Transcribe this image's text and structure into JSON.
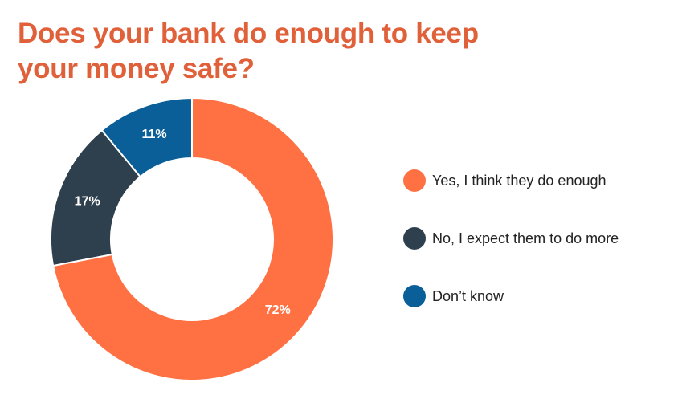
{
  "chart_data": {
    "type": "pie",
    "variant": "donut",
    "title": "Does your bank do enough to keep your money safe?",
    "categories": [
      "Yes, I think they do enough",
      "No, I expect them to do more",
      "Don’t know"
    ],
    "values": [
      72,
      17,
      11
    ],
    "value_labels": [
      "72%",
      "17%",
      "11%"
    ],
    "colors": [
      "#ff7043",
      "#2e3f4d",
      "#0b5f99"
    ],
    "legend_position": "right"
  }
}
